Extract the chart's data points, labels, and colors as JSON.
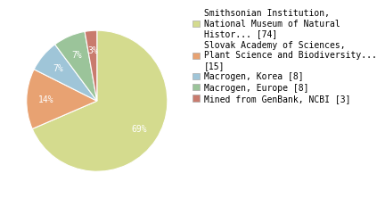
{
  "labels": [
    "Smithsonian Institution,\nNational Museum of Natural\nHistor... [74]",
    "Slovak Academy of Sciences,\nPlant Science and Biodiversity...\n[15]",
    "Macrogen, Korea [8]",
    "Macrogen, Europe [8]",
    "Mined from GenBank, NCBI [3]"
  ],
  "values": [
    74,
    15,
    8,
    8,
    3
  ],
  "colors": [
    "#d4db8e",
    "#e8a272",
    "#9fc5d8",
    "#9bc49a",
    "#c97b6e"
  ],
  "background_color": "#ffffff",
  "fontsize": 7,
  "legend_fontsize": 7
}
